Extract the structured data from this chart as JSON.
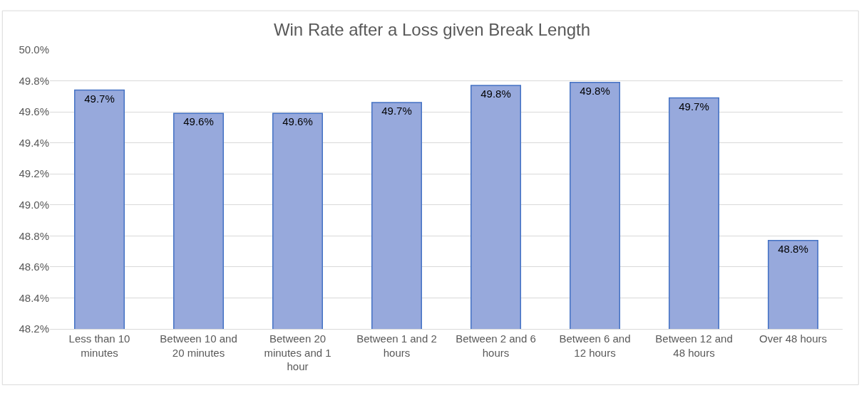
{
  "chart_data": {
    "type": "bar",
    "title": "Win Rate after a Loss given Break Length",
    "categories": [
      "Less than 10 minutes",
      "Between 10 and 20 minutes",
      "Between 20 minutes and 1 hour",
      "Between 1 and 2 hours",
      "Between 2 and 6 hours",
      "Between 6 and 12 hours",
      "Between 12 and 48 hours",
      "Over 48 hours"
    ],
    "values": [
      49.74,
      49.59,
      49.59,
      49.66,
      49.77,
      49.79,
      49.69,
      48.77
    ],
    "value_labels": [
      "49.7%",
      "49.6%",
      "49.6%",
      "49.7%",
      "49.8%",
      "49.8%",
      "49.7%",
      "48.8%"
    ],
    "color": "#97a9dc",
    "ylim": [
      48.2,
      50.0
    ],
    "yticks": [
      {
        "value": 48.2,
        "label": "48.2%"
      },
      {
        "value": 48.4,
        "label": "48.4%"
      },
      {
        "value": 48.6,
        "label": "48.6%"
      },
      {
        "value": 48.8,
        "label": "48.8%"
      },
      {
        "value": 49.0,
        "label": "49.0%"
      },
      {
        "value": 49.2,
        "label": "49.2%"
      },
      {
        "value": 49.4,
        "label": "49.4%"
      },
      {
        "value": 49.6,
        "label": "49.6%"
      },
      {
        "value": 49.8,
        "label": "49.8%"
      },
      {
        "value": 50.0,
        "label": "50.0%"
      }
    ],
    "grid": "y",
    "legend": false
  }
}
